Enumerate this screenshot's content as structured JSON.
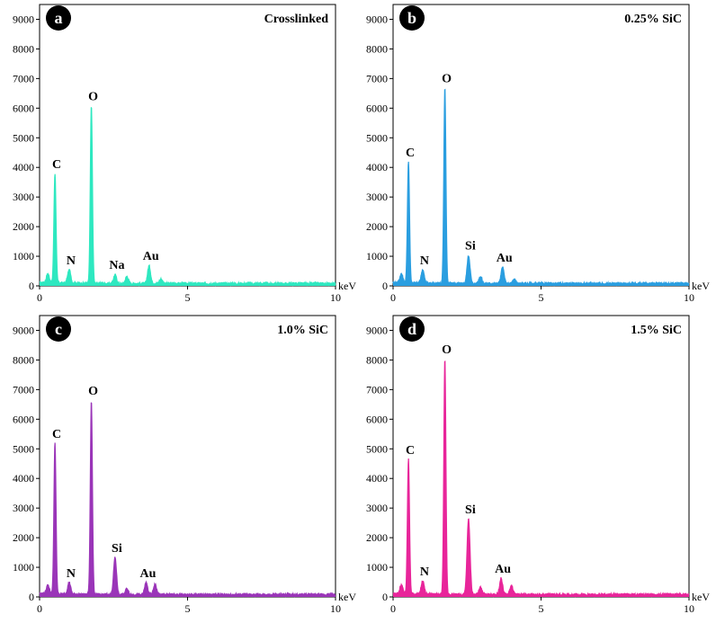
{
  "chart_data": [
    {
      "type": "line",
      "letter": "a",
      "title": "Crosslinked",
      "color": "#2ee8c0",
      "xlabel": "keV",
      "xlim": [
        0,
        10
      ],
      "ylim": [
        0,
        9500
      ],
      "xticks": [
        0,
        5,
        10
      ],
      "yticks": [
        0,
        1000,
        2000,
        3000,
        4000,
        5000,
        6000,
        7000,
        8000,
        9000
      ],
      "peaks": [
        {
          "label": "",
          "x": 0.28,
          "y": 300
        },
        {
          "label": "C",
          "x": 0.52,
          "y": 3700
        },
        {
          "label": "N",
          "x": 1.0,
          "y": 450
        },
        {
          "label": "O",
          "x": 1.75,
          "y": 6000
        },
        {
          "label": "Na",
          "x": 2.55,
          "y": 300
        },
        {
          "label": "",
          "x": 2.95,
          "y": 250
        },
        {
          "label": "Au",
          "x": 3.7,
          "y": 600
        },
        {
          "label": "",
          "x": 4.1,
          "y": 150
        }
      ]
    },
    {
      "type": "line",
      "letter": "b",
      "title": "0.25% SiC",
      "color": "#2a9ee0",
      "xlabel": "keV",
      "xlim": [
        0,
        10
      ],
      "ylim": [
        0,
        9500
      ],
      "xticks": [
        0,
        5,
        10
      ],
      "yticks": [
        0,
        1000,
        2000,
        3000,
        4000,
        5000,
        6000,
        7000,
        8000,
        9000
      ],
      "peaks": [
        {
          "label": "",
          "x": 0.28,
          "y": 300
        },
        {
          "label": "C",
          "x": 0.52,
          "y": 4100
        },
        {
          "label": "N",
          "x": 1.0,
          "y": 450
        },
        {
          "label": "O",
          "x": 1.75,
          "y": 6600
        },
        {
          "label": "Si",
          "x": 2.55,
          "y": 950
        },
        {
          "label": "",
          "x": 2.95,
          "y": 250
        },
        {
          "label": "Au",
          "x": 3.7,
          "y": 550
        },
        {
          "label": "",
          "x": 4.1,
          "y": 150
        }
      ]
    },
    {
      "type": "line",
      "letter": "c",
      "title": "1.0% SiC",
      "color": "#9a35b8",
      "xlabel": "keV",
      "xlim": [
        0,
        10
      ],
      "ylim": [
        0,
        9500
      ],
      "xticks": [
        0,
        5,
        10
      ],
      "yticks": [
        0,
        1000,
        2000,
        3000,
        4000,
        5000,
        6000,
        7000,
        8000,
        9000
      ],
      "peaks": [
        {
          "label": "",
          "x": 0.28,
          "y": 300
        },
        {
          "label": "C",
          "x": 0.52,
          "y": 5100
        },
        {
          "label": "N",
          "x": 1.0,
          "y": 400
        },
        {
          "label": "O",
          "x": 1.75,
          "y": 6550
        },
        {
          "label": "Si",
          "x": 2.55,
          "y": 1250
        },
        {
          "label": "",
          "x": 2.95,
          "y": 200
        },
        {
          "label": "Au",
          "x": 3.6,
          "y": 400
        },
        {
          "label": "",
          "x": 3.9,
          "y": 350
        }
      ]
    },
    {
      "type": "line",
      "letter": "d",
      "title": "1.5% SiC",
      "color": "#e8259a",
      "xlabel": "keV",
      "xlim": [
        0,
        10
      ],
      "ylim": [
        0,
        9500
      ],
      "xticks": [
        0,
        5,
        10
      ],
      "yticks": [
        0,
        1000,
        2000,
        3000,
        4000,
        5000,
        6000,
        7000,
        8000,
        9000
      ],
      "peaks": [
        {
          "label": "",
          "x": 0.28,
          "y": 300
        },
        {
          "label": "C",
          "x": 0.52,
          "y": 4550
        },
        {
          "label": "N",
          "x": 1.0,
          "y": 450
        },
        {
          "label": "O",
          "x": 1.75,
          "y": 7950
        },
        {
          "label": "Si",
          "x": 2.55,
          "y": 2550
        },
        {
          "label": "",
          "x": 2.95,
          "y": 250
        },
        {
          "label": "Au",
          "x": 3.65,
          "y": 550
        },
        {
          "label": "",
          "x": 4.0,
          "y": 300
        }
      ]
    }
  ]
}
